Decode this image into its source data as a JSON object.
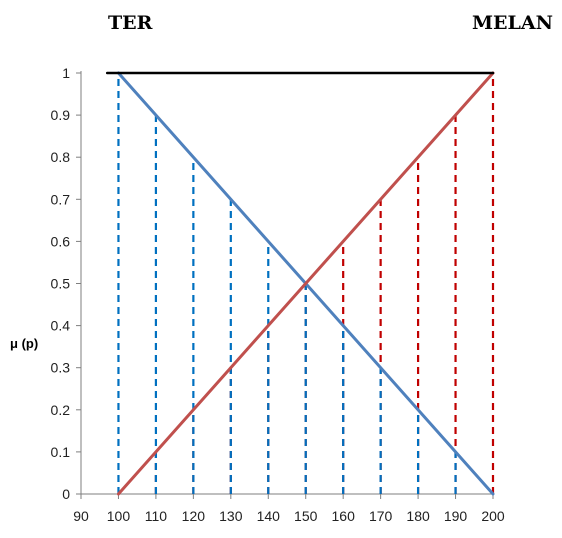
{
  "labels": {
    "left": "TER",
    "right": "MELAN"
  },
  "chart_data": {
    "type": "line",
    "title": "",
    "xlabel": "",
    "ylabel": "μ (p)",
    "xlim": [
      90,
      200
    ],
    "ylim": [
      0,
      1
    ],
    "x_ticks": [
      90,
      100,
      110,
      120,
      130,
      140,
      150,
      160,
      170,
      180,
      190,
      200
    ],
    "y_ticks": [
      0,
      0.1,
      0.2,
      0.3,
      0.4,
      0.5,
      0.6,
      0.7,
      0.8,
      0.9,
      1
    ],
    "y_tick_labels": [
      "0",
      "0.1",
      "0.2",
      "0.3",
      "0.4",
      "0.5",
      "0.6",
      "0.7",
      "0.8",
      "0.9",
      "1"
    ],
    "grid": false,
    "series": [
      {
        "color": "#4f81bd",
        "points": [
          [
            100,
            1
          ],
          [
            200,
            0
          ]
        ]
      },
      {
        "color": "#c0504d",
        "points": [
          [
            100,
            0
          ],
          [
            200,
            1
          ]
        ]
      },
      {
        "color": "#000000",
        "points": [
          [
            97,
            1
          ],
          [
            200,
            1
          ]
        ]
      }
    ],
    "drop_lines": {
      "style": "dashed",
      "blue": {
        "color": "#0070c0",
        "x": [
          100,
          110,
          120,
          130,
          140,
          150,
          160,
          170,
          180,
          190
        ]
      },
      "red": {
        "color": "#c00000",
        "x": [
          110,
          120,
          130,
          140,
          150,
          160,
          170,
          180,
          190,
          200
        ]
      }
    }
  }
}
